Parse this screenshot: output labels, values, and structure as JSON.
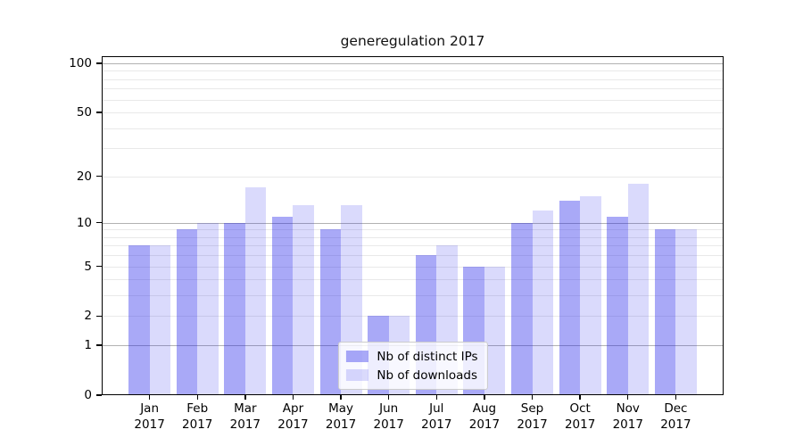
{
  "chart_data": {
    "type": "bar",
    "title": "generegulation 2017",
    "categories": [
      "Jan",
      "Feb",
      "Mar",
      "Apr",
      "May",
      "Jun",
      "Jul",
      "Aug",
      "Sep",
      "Oct",
      "Nov",
      "Dec"
    ],
    "category_year": "2017",
    "series": [
      {
        "name": "Nb of distinct IPs",
        "color_hex": "#a9a9f7",
        "color_rgba": "rgba(30,30,235,0.38)",
        "values": [
          7,
          9,
          10,
          11,
          9,
          2,
          6,
          5,
          10,
          14,
          11,
          9
        ]
      },
      {
        "name": "Nb of downloads",
        "color_hex": "#dadafb",
        "color_rgba": "rgba(30,30,235,0.165)",
        "values": [
          7,
          10,
          17,
          13,
          13,
          2,
          7,
          5,
          12,
          15,
          18,
          9
        ]
      }
    ],
    "xlabel": "",
    "ylabel": "",
    "yscale": "symlog",
    "ylim": [
      0,
      110.5
    ],
    "yticks": [
      0,
      1,
      2,
      5,
      10,
      20,
      50,
      100
    ],
    "major_gridlines": [
      1,
      10,
      100
    ],
    "minor_gridlines": [
      2,
      3,
      4,
      5,
      6,
      7,
      8,
      9,
      20,
      30,
      40,
      50,
      60,
      70,
      80,
      90
    ],
    "grid": "on",
    "legend_position": "lower center",
    "colors": {
      "grid_major": "#b2b2b2",
      "grid_minor": "#e9e9e9",
      "axis": "#000000",
      "legend_border": "#cccccc"
    }
  }
}
